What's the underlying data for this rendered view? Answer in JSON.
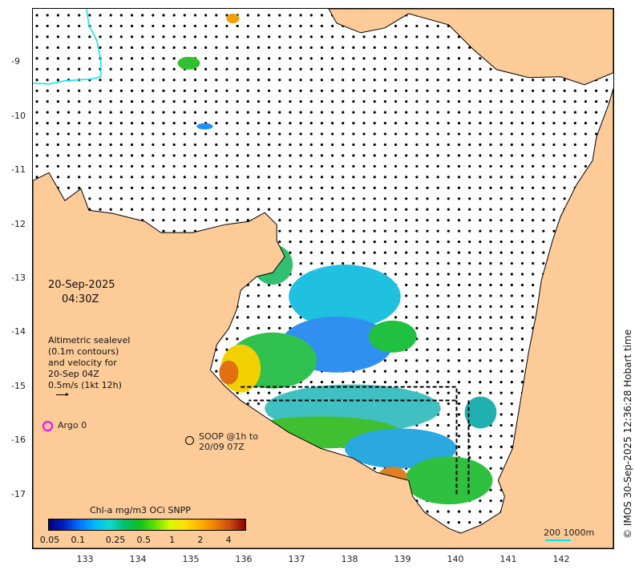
{
  "map": {
    "date": "20-Sep-2025",
    "time": "04:30Z",
    "legend_lines": [
      "Altimetric sealevel",
      "(0.1m contours)",
      "and velocity for",
      "20-Sep 04Z",
      "0.5m/s (1kt 12h)"
    ],
    "argo_label": "Argo 0",
    "soop_label_1": "SOOP @1h to",
    "soop_label_2": "20/09 07Z",
    "scale_label": "200  1000m",
    "credit": "© IMOS 30-Sep-2025 12:36:28 Hobart time",
    "colors": {
      "land": "#fccb98",
      "sea": "#ffffff",
      "argo": "#ff00ff",
      "isobath": "#00e5ee"
    }
  },
  "axes": {
    "lon_ticks": [
      133,
      134,
      135,
      136,
      137,
      138,
      139,
      140,
      141,
      142
    ],
    "lat_ticks": [
      -9,
      -10,
      -11,
      -12,
      -13,
      -14,
      -15,
      -16,
      -17
    ],
    "lon_range": [
      132,
      143
    ],
    "lat_range": [
      -8,
      -18
    ]
  },
  "colorbar": {
    "title": "Chl-a mg/m3 OCi SNPP",
    "ticks": [
      "0.05",
      "0.1",
      "0.25",
      "0.5",
      "1",
      "2",
      "4"
    ],
    "tick_values": [
      0.05,
      0.1,
      0.25,
      0.5,
      1,
      2,
      4
    ]
  }
}
